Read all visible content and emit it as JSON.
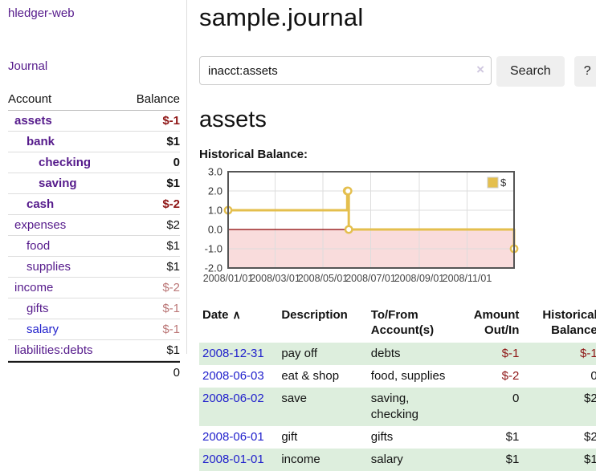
{
  "app": {
    "title": "hledger-web"
  },
  "nav": {
    "journal_label": "Journal"
  },
  "sidebar": {
    "headers": {
      "account": "Account",
      "balance": "Balance"
    },
    "accounts": [
      {
        "name": "assets",
        "balance": "$-1",
        "level": 1,
        "bold": true,
        "tone": "neg-strong",
        "blue": false
      },
      {
        "name": "bank",
        "balance": "$1",
        "level": 2,
        "bold": true,
        "tone": "pos",
        "blue": false
      },
      {
        "name": "checking",
        "balance": "0",
        "level": 3,
        "bold": true,
        "tone": "pos",
        "blue": false
      },
      {
        "name": "saving",
        "balance": "$1",
        "level": 3,
        "bold": true,
        "tone": "pos",
        "blue": false
      },
      {
        "name": "cash",
        "balance": "$-2",
        "level": 2,
        "bold": true,
        "tone": "neg-strong",
        "blue": false
      },
      {
        "name": "expenses",
        "balance": "$2",
        "level": 1,
        "bold": false,
        "tone": "pos",
        "blue": false
      },
      {
        "name": "food",
        "balance": "$1",
        "level": 2,
        "bold": false,
        "tone": "pos",
        "blue": false
      },
      {
        "name": "supplies",
        "balance": "$1",
        "level": 2,
        "bold": false,
        "tone": "pos",
        "blue": false
      },
      {
        "name": "income",
        "balance": "$-2",
        "level": 1,
        "bold": false,
        "tone": "neg-soft",
        "blue": false
      },
      {
        "name": "gifts",
        "balance": "$-1",
        "level": 2,
        "bold": false,
        "tone": "neg-soft",
        "blue": false
      },
      {
        "name": "salary",
        "balance": "$-1",
        "level": 2,
        "bold": false,
        "tone": "neg-soft",
        "blue": true
      },
      {
        "name": "liabilities:debts",
        "balance": "$1",
        "level": 1,
        "bold": false,
        "tone": "pos",
        "blue": false
      }
    ],
    "total": "0"
  },
  "main": {
    "title": "sample.journal",
    "search": {
      "value": "inacct:assets",
      "clear_icon": "×",
      "button_label": "Search",
      "help_label": "?"
    },
    "account_heading": "assets",
    "chart_heading": "Historical Balance:"
  },
  "chart_data": {
    "type": "line",
    "title": "Historical Balance",
    "step": true,
    "series": [
      {
        "name": "$",
        "points": [
          [
            "2008-01-01",
            1
          ],
          [
            "2008-06-01",
            2
          ],
          [
            "2008-06-02",
            2
          ],
          [
            "2008-06-03",
            0
          ],
          [
            "2008-12-31",
            -1
          ]
        ]
      }
    ],
    "xrange": [
      "2008-01-01",
      "2008-12-31"
    ],
    "ylim": [
      -2,
      3
    ],
    "yticks": [
      3.0,
      2.0,
      1.0,
      0.0,
      -1.0,
      -2.0
    ],
    "ytick_labels": [
      "3.0",
      "2.0",
      "1.0",
      "0.0",
      "-1.0",
      "-2.0"
    ],
    "xticks": [
      "2008-01-01",
      "2008-03-01",
      "2008-05-01",
      "2008-07-01",
      "2008-09-01",
      "2008-11-01"
    ],
    "xtick_labels": [
      "2008/01/01",
      "2008/03/01",
      "2008/05/01",
      "2008/07/01",
      "2008/09/01",
      "2008/11/01"
    ],
    "legend": {
      "label": "$",
      "position": "top-right"
    },
    "grid": true,
    "line_color": "#e4bf4e",
    "marker_fill": "#ffffff",
    "negative_region_color": "#f9dcdc",
    "zero_line_color": "#8b0000",
    "border_color": "#555555",
    "grid_color": "#dddddd"
  },
  "register": {
    "headers": {
      "date": "Date",
      "sort_icon": "∧",
      "description": "Description",
      "account_l1": "To/From",
      "account_l2": "Account(s)",
      "amount_l1": "Amount",
      "amount_l2": "Out/In",
      "balance_l1": "Historical",
      "balance_l2": "Balance"
    },
    "rows": [
      {
        "date": "2008-12-31",
        "description": "pay off",
        "accounts": "debts",
        "amount": "$-1",
        "balance": "$-1",
        "green": true
      },
      {
        "date": "2008-06-03",
        "description": "eat & shop",
        "accounts": "food, supplies",
        "amount": "$-2",
        "balance": "0",
        "green": false
      },
      {
        "date": "2008-06-02",
        "description": "save",
        "accounts": "saving, checking",
        "amount": "0",
        "balance": "$2",
        "green": true
      },
      {
        "date": "2008-06-01",
        "description": "gift",
        "accounts": "gifts",
        "amount": "$1",
        "balance": "$2",
        "green": false
      },
      {
        "date": "2008-01-01",
        "description": "income",
        "accounts": "salary",
        "amount": "$1",
        "balance": "$1",
        "green": true
      }
    ]
  },
  "colors": {
    "link_purple": "#551a8b",
    "link_blue": "#2222cc",
    "negative_strong": "#8e1515",
    "negative_soft": "#bb7777",
    "row_green": "#ddeedd",
    "button_bg": "#efefef"
  }
}
